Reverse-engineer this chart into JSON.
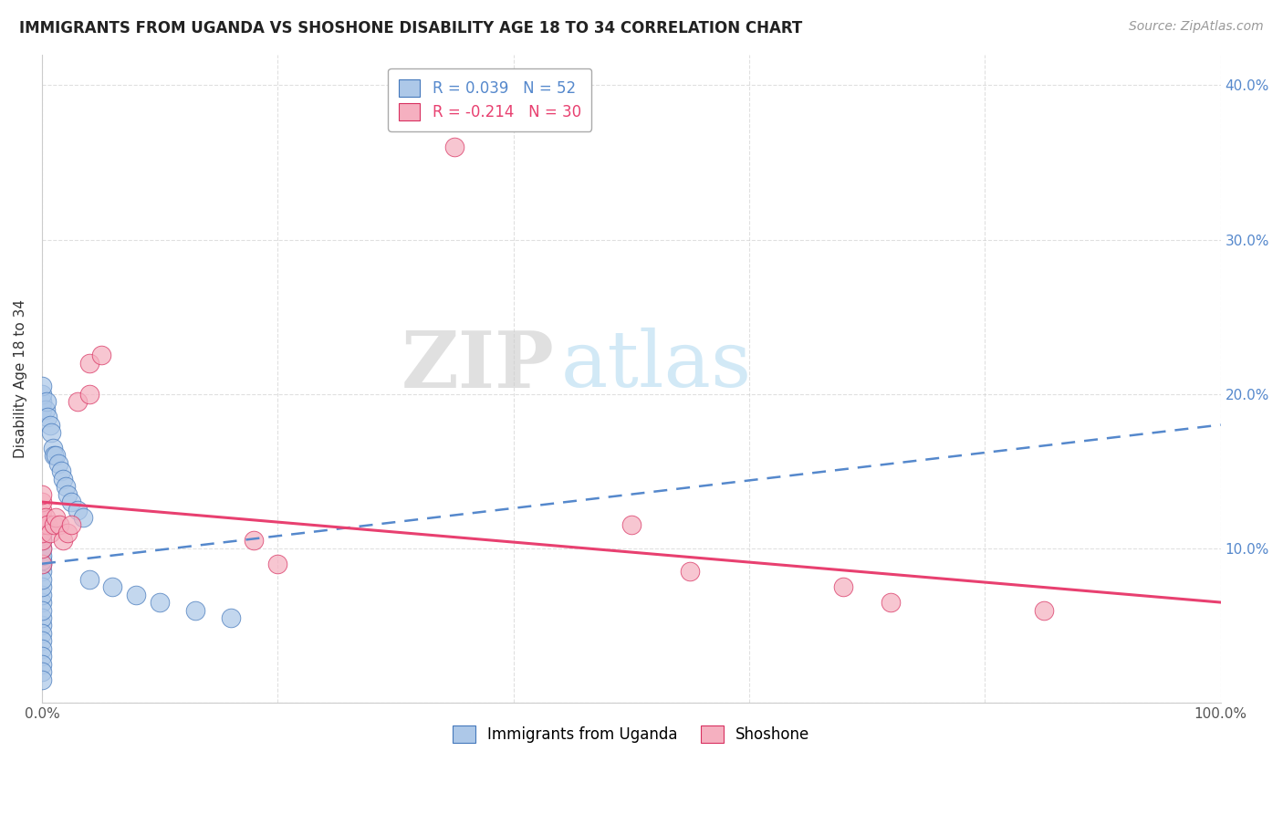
{
  "title": "IMMIGRANTS FROM UGANDA VS SHOSHONE DISABILITY AGE 18 TO 34 CORRELATION CHART",
  "source": "Source: ZipAtlas.com",
  "ylabel": "Disability Age 18 to 34",
  "xlim": [
    0,
    1.0
  ],
  "ylim": [
    0,
    0.42
  ],
  "xticks": [
    0.0,
    0.2,
    0.4,
    0.6,
    0.8,
    1.0
  ],
  "xtick_labels": [
    "0.0%",
    "",
    "",
    "",
    "",
    "100.0%"
  ],
  "yticks": [
    0.0,
    0.1,
    0.2,
    0.3,
    0.4
  ],
  "ytick_labels_left": [
    "",
    "",
    "",
    "",
    ""
  ],
  "ytick_labels_right": [
    "",
    "10.0%",
    "20.0%",
    "30.0%",
    "40.0%"
  ],
  "legend_r1": "R = 0.039   N = 52",
  "legend_r2": "R = -0.214   N = 30",
  "blue_color": "#adc8e8",
  "pink_color": "#f5b0c0",
  "blue_line_color": "#5588cc",
  "pink_line_color": "#e84070",
  "blue_edge_color": "#4478bb",
  "pink_edge_color": "#d83060",
  "watermark_zip": "ZIP",
  "watermark_atlas": "atlas",
  "background_color": "#ffffff",
  "grid_color": "#cccccc",
  "blue_x": [
    0.0,
    0.0,
    0.0,
    0.0,
    0.0,
    0.0,
    0.0,
    0.0,
    0.0,
    0.0,
    0.0,
    0.0,
    0.0,
    0.0,
    0.0,
    0.0,
    0.0,
    0.0,
    0.0,
    0.0,
    0.0,
    0.0,
    0.0,
    0.0,
    0.0,
    0.0,
    0.0,
    0.0,
    0.0,
    0.0,
    0.003,
    0.004,
    0.005,
    0.007,
    0.008,
    0.009,
    0.01,
    0.012,
    0.014,
    0.016,
    0.018,
    0.02,
    0.022,
    0.025,
    0.03,
    0.035,
    0.04,
    0.06,
    0.08,
    0.1,
    0.13,
    0.16
  ],
  "blue_y": [
    0.085,
    0.09,
    0.092,
    0.095,
    0.1,
    0.105,
    0.108,
    0.11,
    0.112,
    0.115,
    0.118,
    0.12,
    0.065,
    0.07,
    0.075,
    0.08,
    0.05,
    0.055,
    0.06,
    0.045,
    0.04,
    0.035,
    0.03,
    0.025,
    0.02,
    0.015,
    0.19,
    0.195,
    0.2,
    0.205,
    0.19,
    0.195,
    0.185,
    0.18,
    0.175,
    0.165,
    0.16,
    0.16,
    0.155,
    0.15,
    0.145,
    0.14,
    0.135,
    0.13,
    0.125,
    0.12,
    0.08,
    0.075,
    0.07,
    0.065,
    0.06,
    0.055
  ],
  "pink_x": [
    0.0,
    0.0,
    0.0,
    0.0,
    0.0,
    0.0,
    0.0,
    0.0,
    0.0,
    0.003,
    0.005,
    0.007,
    0.01,
    0.012,
    0.015,
    0.018,
    0.022,
    0.025,
    0.03,
    0.04,
    0.04,
    0.05,
    0.18,
    0.2,
    0.35,
    0.5,
    0.55,
    0.68,
    0.72,
    0.85
  ],
  "pink_y": [
    0.09,
    0.1,
    0.105,
    0.11,
    0.115,
    0.12,
    0.125,
    0.13,
    0.135,
    0.12,
    0.115,
    0.11,
    0.115,
    0.12,
    0.115,
    0.105,
    0.11,
    0.115,
    0.195,
    0.2,
    0.22,
    0.225,
    0.105,
    0.09,
    0.36,
    0.115,
    0.085,
    0.075,
    0.065,
    0.06
  ],
  "blue_line_x": [
    0.0,
    1.0
  ],
  "blue_line_y": [
    0.09,
    0.18
  ],
  "pink_line_x": [
    0.0,
    1.0
  ],
  "pink_line_y": [
    0.13,
    0.065
  ]
}
